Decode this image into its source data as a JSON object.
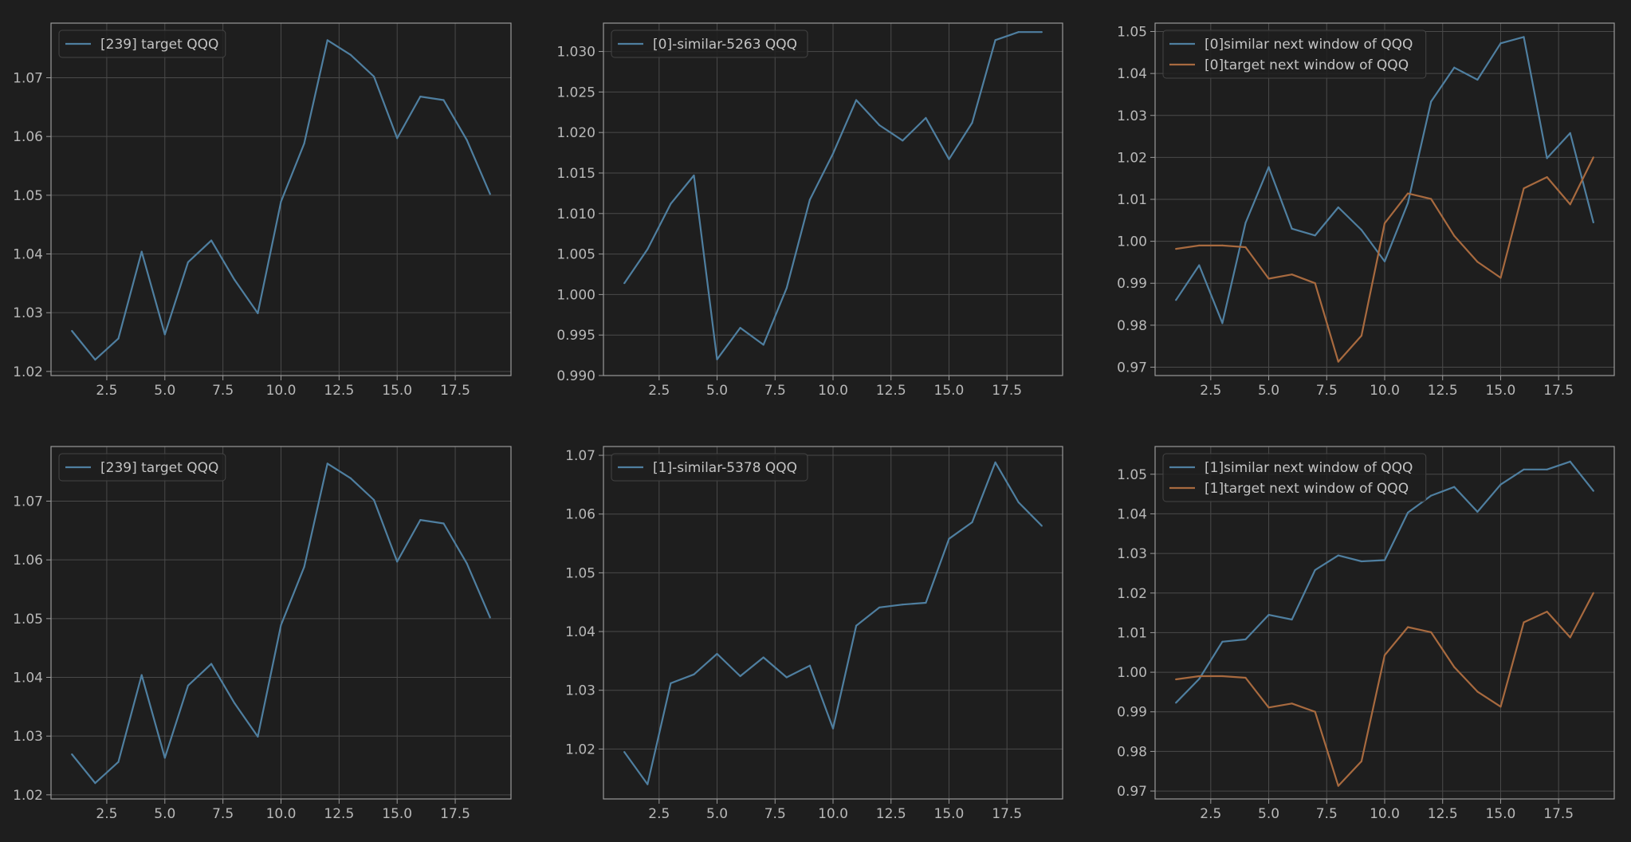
{
  "colors": {
    "background": "#1e1e1e",
    "axes_frame": "#9a9a9a",
    "grid": "#4a4a4a",
    "tick_text": "#b8b8b8",
    "legend_text": "#c4c4c4",
    "blue_series": "#4f7fa0",
    "orange_series": "#a86a3f"
  },
  "chart_data": [
    {
      "type": "line",
      "row": 0,
      "col": 0,
      "xlim": [
        0.1,
        19.9
      ],
      "ylim": [
        1.0193,
        1.0793
      ],
      "xticks": [
        2.5,
        5.0,
        7.5,
        10.0,
        12.5,
        15.0,
        17.5
      ],
      "yticks": [
        1.02,
        1.03,
        1.04,
        1.05,
        1.06,
        1.07
      ],
      "ytick_decimals": 2,
      "legend_position": "upper-left",
      "grid": true,
      "series": [
        {
          "name": "[239] target QQQ",
          "color": "blue",
          "x": [
            1,
            2,
            3,
            4,
            5,
            6,
            7,
            8,
            9,
            10,
            11,
            12,
            13,
            14,
            15,
            16,
            17,
            18,
            19
          ],
          "y": [
            1.0269,
            1.022,
            1.0256,
            1.0404,
            1.0263,
            1.0386,
            1.0423,
            1.0356,
            1.0299,
            1.0489,
            1.0588,
            1.0764,
            1.0739,
            1.0702,
            1.0597,
            1.0668,
            1.0662,
            1.0594,
            1.0502
          ]
        }
      ]
    },
    {
      "type": "line",
      "row": 0,
      "col": 1,
      "xlim": [
        0.1,
        19.9
      ],
      "ylim": [
        0.99,
        1.0335
      ],
      "xticks": [
        2.5,
        5.0,
        7.5,
        10.0,
        12.5,
        15.0,
        17.5
      ],
      "yticks": [
        0.99,
        0.995,
        1.0,
        1.005,
        1.01,
        1.015,
        1.02,
        1.025,
        1.03
      ],
      "ytick_decimals": 3,
      "legend_position": "upper-left",
      "grid": true,
      "series": [
        {
          "name": "[0]-similar-5263 QQQ",
          "color": "blue",
          "x": [
            1,
            2,
            3,
            4,
            5,
            6,
            7,
            8,
            9,
            10,
            11,
            12,
            13,
            14,
            15,
            16,
            17,
            18,
            19
          ],
          "y": [
            1.0014,
            1.0056,
            1.0112,
            1.0147,
            0.992,
            0.9959,
            0.9938,
            1.0008,
            1.0117,
            1.0174,
            1.024,
            1.0209,
            1.019,
            1.0218,
            1.0167,
            1.0212,
            1.0314,
            1.0324,
            1.0324
          ]
        }
      ]
    },
    {
      "type": "line",
      "row": 0,
      "col": 2,
      "xlim": [
        0.1,
        19.9
      ],
      "ylim": [
        0.968,
        1.052
      ],
      "xticks": [
        2.5,
        5.0,
        7.5,
        10.0,
        12.5,
        15.0,
        17.5
      ],
      "yticks": [
        0.97,
        0.98,
        0.99,
        1.0,
        1.01,
        1.02,
        1.03,
        1.04,
        1.05
      ],
      "ytick_decimals": 2,
      "legend_position": "upper-left",
      "grid": true,
      "series": [
        {
          "name": "[0]similar next window of QQQ",
          "color": "blue",
          "x": [
            1,
            2,
            3,
            4,
            5,
            6,
            7,
            8,
            9,
            10,
            11,
            12,
            13,
            14,
            15,
            16,
            17,
            18,
            19
          ],
          "y": [
            0.986,
            0.9943,
            0.9805,
            1.0044,
            1.0177,
            1.003,
            1.0014,
            1.0081,
            1.0027,
            0.9952,
            1.0091,
            1.0333,
            1.0414,
            1.0385,
            1.0472,
            1.0487,
            1.0198,
            1.0258,
            1.0045
          ]
        },
        {
          "name": "[0]target next window of QQQ",
          "color": "orange",
          "x": [
            1,
            2,
            3,
            4,
            5,
            6,
            7,
            8,
            9,
            10,
            11,
            12,
            13,
            14,
            15,
            16,
            17,
            18,
            19
          ],
          "y": [
            0.9982,
            0.999,
            0.999,
            0.9986,
            0.9911,
            0.9921,
            0.99,
            0.9713,
            0.9775,
            1.0043,
            1.0114,
            1.0101,
            1.0013,
            0.9951,
            0.9913,
            1.0126,
            1.0153,
            1.0088,
            1.02
          ]
        }
      ]
    },
    {
      "type": "line",
      "row": 1,
      "col": 0,
      "xlim": [
        0.1,
        19.9
      ],
      "ylim": [
        1.0193,
        1.0793
      ],
      "xticks": [
        2.5,
        5.0,
        7.5,
        10.0,
        12.5,
        15.0,
        17.5
      ],
      "yticks": [
        1.02,
        1.03,
        1.04,
        1.05,
        1.06,
        1.07
      ],
      "ytick_decimals": 2,
      "legend_position": "upper-left",
      "grid": true,
      "series": [
        {
          "name": "[239] target QQQ",
          "color": "blue",
          "x": [
            1,
            2,
            3,
            4,
            5,
            6,
            7,
            8,
            9,
            10,
            11,
            12,
            13,
            14,
            15,
            16,
            17,
            18,
            19
          ],
          "y": [
            1.0269,
            1.022,
            1.0256,
            1.0404,
            1.0263,
            1.0386,
            1.0423,
            1.0356,
            1.0299,
            1.0489,
            1.0588,
            1.0764,
            1.0739,
            1.0702,
            1.0597,
            1.0668,
            1.0662,
            1.0594,
            1.0502
          ]
        }
      ]
    },
    {
      "type": "line",
      "row": 1,
      "col": 1,
      "xlim": [
        0.1,
        19.9
      ],
      "ylim": [
        1.0115,
        1.0715
      ],
      "xticks": [
        2.5,
        5.0,
        7.5,
        10.0,
        12.5,
        15.0,
        17.5
      ],
      "yticks": [
        1.02,
        1.03,
        1.04,
        1.05,
        1.06,
        1.07
      ],
      "ytick_decimals": 2,
      "legend_position": "upper-left",
      "grid": true,
      "series": [
        {
          "name": "[1]-similar-5378 QQQ",
          "color": "blue",
          "x": [
            1,
            2,
            3,
            4,
            5,
            6,
            7,
            8,
            9,
            10,
            11,
            12,
            13,
            14,
            15,
            16,
            17,
            18,
            19
          ],
          "y": [
            1.0195,
            1.014,
            1.0312,
            1.0327,
            1.0362,
            1.0324,
            1.0356,
            1.0322,
            1.0342,
            1.0235,
            1.041,
            1.0441,
            1.0446,
            1.0449,
            1.0558,
            1.0586,
            1.0688,
            1.062,
            1.058
          ]
        }
      ]
    },
    {
      "type": "line",
      "row": 1,
      "col": 2,
      "xlim": [
        0.1,
        19.9
      ],
      "ylim": [
        0.968,
        1.057
      ],
      "xticks": [
        2.5,
        5.0,
        7.5,
        10.0,
        12.5,
        15.0,
        17.5
      ],
      "yticks": [
        0.97,
        0.98,
        0.99,
        1.0,
        1.01,
        1.02,
        1.03,
        1.04,
        1.05
      ],
      "ytick_decimals": 2,
      "legend_position": "upper-left",
      "grid": true,
      "series": [
        {
          "name": "[1]similar next window of QQQ",
          "color": "blue",
          "x": [
            1,
            2,
            3,
            4,
            5,
            6,
            7,
            8,
            9,
            10,
            11,
            12,
            13,
            14,
            15,
            16,
            17,
            18,
            19
          ],
          "y": [
            0.9923,
            0.9983,
            1.0077,
            1.0083,
            1.0145,
            1.0133,
            1.0258,
            1.0295,
            1.028,
            1.0283,
            1.0403,
            1.0446,
            1.0468,
            1.0405,
            1.0474,
            1.0512,
            1.0512,
            1.0532,
            1.0458
          ]
        },
        {
          "name": "[1]target next window of QQQ",
          "color": "orange",
          "x": [
            1,
            2,
            3,
            4,
            5,
            6,
            7,
            8,
            9,
            10,
            11,
            12,
            13,
            14,
            15,
            16,
            17,
            18,
            19
          ],
          "y": [
            0.9982,
            0.999,
            0.999,
            0.9986,
            0.9911,
            0.9921,
            0.99,
            0.9713,
            0.9775,
            1.0043,
            1.0114,
            1.0101,
            1.0013,
            0.9951,
            0.9913,
            1.0126,
            1.0153,
            1.0088,
            1.02
          ]
        }
      ]
    }
  ]
}
